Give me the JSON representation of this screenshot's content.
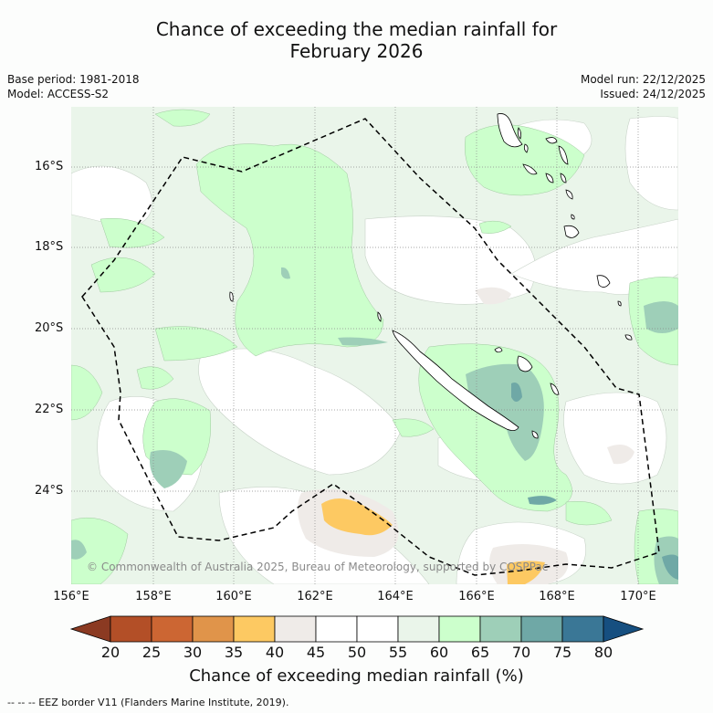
{
  "title": {
    "line1": "Chance of exceeding the median rainfall for",
    "line2": "February 2026"
  },
  "meta": {
    "base_period": "Base period: 1981-2018",
    "model": "Model: ACCESS-S2",
    "model_run": "Model run: 22/12/2025",
    "issued": "Issued: 24/12/2025"
  },
  "axes": {
    "lat_labels": [
      "16°S",
      "18°S",
      "20°S",
      "22°S",
      "24°S"
    ],
    "lon_labels": [
      "156°E",
      "158°E",
      "160°E",
      "162°E",
      "164°E",
      "166°E",
      "168°E",
      "170°E"
    ]
  },
  "copyright": "© Commonwealth of Australia 2025, Bureau of Meteorology, supported by COSPPac",
  "colorbar": {
    "title": "Chance of exceeding median rainfall (%)",
    "tick_labels": [
      "20",
      "25",
      "30",
      "35",
      "40",
      "45",
      "50",
      "55",
      "60",
      "65",
      "70",
      "75",
      "80"
    ],
    "colors": [
      "#8b3a22",
      "#b34f27",
      "#cc6633",
      "#e0944a",
      "#fdc962",
      "#efebe8",
      "#ffffff",
      "#ffffff",
      "#eaf5ea",
      "#ccffcc",
      "#9ecfb8",
      "#6fa8a6",
      "#3a7796",
      "#164f80"
    ]
  },
  "legend": {
    "eez": "--  --  -- EEZ border V11 (Flanders Marine Institute, 2019)."
  }
}
